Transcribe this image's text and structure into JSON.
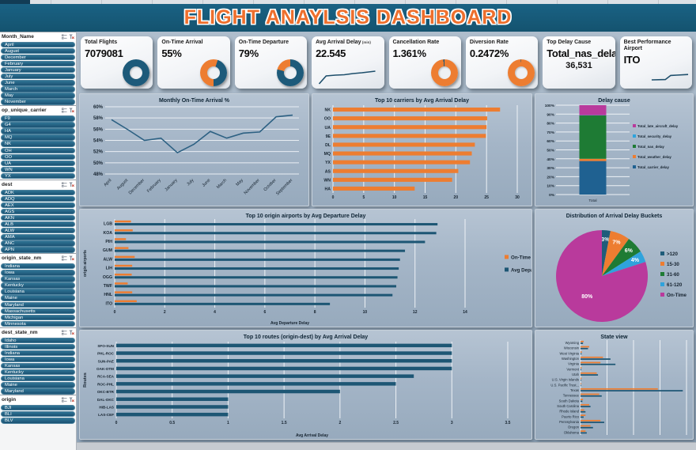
{
  "title": "FLIGHT ANAYLSIS DASHBOARD",
  "sidebar": {
    "slicers": [
      {
        "name": "Month_Name",
        "items": [
          "April",
          "August",
          "December",
          "February",
          "January",
          "July",
          "June",
          "March",
          "May",
          "November"
        ]
      },
      {
        "name": "op_unique_carrier",
        "items": [
          "F9",
          "G4",
          "HA",
          "MQ",
          "NK",
          "OH",
          "OO",
          "UA",
          "WN",
          "YX"
        ]
      },
      {
        "name": "dest",
        "items": [
          "ADK",
          "ADQ",
          "AEX",
          "AGS",
          "AKN",
          "ALB",
          "ALW",
          "AMA",
          "ANC",
          "APN"
        ]
      },
      {
        "name": "origin_state_nm",
        "items": [
          "Indiana",
          "Iowa",
          "Kansas",
          "Kentucky",
          "Louisiana",
          "Maine",
          "Maryland",
          "Massachusetts",
          "Michigan",
          "Minnesota"
        ]
      },
      {
        "name": "dest_state_nm",
        "items": [
          "Idaho",
          "Illinois",
          "Indiana",
          "Iowa",
          "Kansas",
          "Kentucky",
          "Louisiana",
          "Maine",
          "Maryland"
        ]
      },
      {
        "name": "origin",
        "items": [
          "BJI",
          "BLI",
          "BLV"
        ]
      }
    ]
  },
  "kpis": [
    {
      "label": "Total Flights",
      "value": "7079081",
      "viz": "donut",
      "donut": {
        "from": 0,
        "segments": [
          {
            "color": "#1D5A7A",
            "pct": 100
          }
        ]
      }
    },
    {
      "label": "On-Time Arrival",
      "value": "55%",
      "viz": "donut",
      "donut": {
        "from": 180,
        "segments": [
          {
            "color": "#ED7D31",
            "pct": 55
          },
          {
            "color": "#1D5A7A",
            "pct": 45
          }
        ]
      }
    },
    {
      "label": "On-Time Departure",
      "value": "79%",
      "viz": "donut",
      "donut": {
        "from": 0,
        "segments": [
          {
            "color": "#1D5A7A",
            "pct": 79
          },
          {
            "color": "#ED7D31",
            "pct": 21
          }
        ]
      }
    },
    {
      "label": "Avg Arrival Delay",
      "label_suffix": "(min)",
      "value": "22.545",
      "viz": "spark",
      "spark": [
        [
          2,
          18
        ],
        [
          14,
          8
        ],
        [
          30,
          7
        ],
        [
          45,
          6.5
        ],
        [
          60,
          5
        ],
        [
          75,
          4
        ],
        [
          98,
          2
        ]
      ]
    },
    {
      "label": "Cancellation Rate",
      "value": "1.361%",
      "viz": "donut",
      "donut": {
        "from": 0,
        "segments": [
          {
            "color": "#ED7D31",
            "pct": 98.6
          },
          {
            "color": "#1D5A7A",
            "pct": 1.4
          }
        ]
      }
    },
    {
      "label": "Diversion Rate",
      "value": "0.2472%",
      "viz": "donut",
      "donut": {
        "from": 0,
        "segments": [
          {
            "color": "#ED7D31",
            "pct": 99.7
          },
          {
            "color": "#1D5A7A",
            "pct": 0.3
          }
        ]
      }
    },
    {
      "label": "Top Delay Cause",
      "value": "Total_nas_delay",
      "sub": "36,531",
      "viz": "text"
    },
    {
      "label": "Best Performance Airport",
      "value": "ITO",
      "viz": "spark",
      "spark_right": true,
      "spark": [
        [
          2,
          15
        ],
        [
          38,
          14.5
        ],
        [
          52,
          8
        ],
        [
          68,
          7.5
        ],
        [
          98,
          6.5
        ]
      ]
    }
  ],
  "chart_data": [
    {
      "id": "monthly_on_time",
      "type": "line",
      "title": "Monthly On-Time Arrival %",
      "categories": [
        "April",
        "August",
        "December",
        "February",
        "January",
        "July",
        "June",
        "March",
        "May",
        "November",
        "October",
        "September"
      ],
      "values": [
        57.7,
        55.9,
        54.0,
        54.4,
        51.8,
        53.3,
        55.6,
        54.4,
        55.3,
        55.5,
        58.2,
        58.5
      ],
      "ylim": [
        48,
        60
      ],
      "ytick_step": 2,
      "line_color": "#2d6183",
      "grid": true
    },
    {
      "id": "carriers",
      "type": "bar",
      "title": "Top 10 carriers by Avg Arrival Delay",
      "categories": [
        "NK",
        "OO",
        "UA",
        "9E",
        "DL",
        "MQ",
        "YX",
        "AS",
        "WN",
        "HA"
      ],
      "values": [
        27.2,
        25.1,
        25.0,
        24.9,
        23.1,
        22.6,
        22.3,
        20.4,
        19.4,
        13.3
      ],
      "xlim": [
        0,
        30
      ],
      "xtick_step": 5,
      "color": "#ED7D31",
      "grid": true
    },
    {
      "id": "delay_cause",
      "type": "stacked_bar",
      "title": "Delay cause",
      "x_label": "Total",
      "ylim": [
        0,
        100
      ],
      "ytick_step": 10,
      "segments": [
        {
          "name": "Total_carrier_delay",
          "value": 37.5,
          "color": "#1F6191"
        },
        {
          "name": "Total_weather_delay",
          "value": 2.5,
          "color": "#ED7D31"
        },
        {
          "name": "Total_nas_delay",
          "value": 48.5,
          "color": "#1E7B34"
        },
        {
          "name": "Total_security_delay",
          "value": 0.3,
          "color": "#2FA3DC"
        },
        {
          "name": "Total_late_aircraft_delay",
          "value": 11.2,
          "color": "#B93A9C"
        }
      ],
      "legend_position": "right"
    },
    {
      "id": "origin_airports",
      "type": "clustered_bar",
      "title": "Top 10 origin airports by Avg Departure Delay",
      "categories": [
        "LGB",
        "KOA",
        "PIH",
        "GUM",
        "ALW",
        "LIH",
        "OGG",
        "TWF",
        "HNL",
        "ITO"
      ],
      "series": [
        {
          "name": "On-Time Arrival %",
          "color": "#ED7D31",
          "values": [
            0.65,
            0.72,
            0.45,
            0.55,
            0.8,
            0.7,
            0.68,
            0.52,
            0.7,
            0.88
          ]
        },
        {
          "name": "Avg Departure Delay",
          "color": "#1D5674",
          "values": [
            12.9,
            12.85,
            12.4,
            11.6,
            11.4,
            11.35,
            11.3,
            11.25,
            11.1,
            8.6
          ]
        }
      ],
      "xlim": [
        0,
        14
      ],
      "xtick_step": 2,
      "xlabel": "Avg Departure Delay",
      "ylabel": "origin airports",
      "legend_position": "right",
      "grid": true
    },
    {
      "id": "delay_buckets",
      "type": "pie",
      "title": "Distribution of Arrival Delay Buckets",
      "slices": [
        {
          "label": ">120",
          "value": 3,
          "color": "#1F5C7A"
        },
        {
          "label": "15-30",
          "value": 7,
          "color": "#ED7D31"
        },
        {
          "label": "31-60",
          "value": 6,
          "color": "#1E7B34"
        },
        {
          "label": "61-120",
          "value": 4,
          "color": "#2FA3DC"
        },
        {
          "label": "On-Time",
          "value": 80,
          "color": "#B93A9C"
        }
      ],
      "legend_position": "right"
    },
    {
      "id": "routes",
      "type": "bar",
      "title": "Top 10 routes (origin-dest) by Avg Arrival Delay",
      "categories": [
        "SFO-SUN",
        "PHL-ROC",
        "SUN-PAE",
        "OAK-OTM",
        "RCA-SEA",
        "ROC-PHL",
        "OKC-BTR",
        "DAL-OKC",
        "HIB-LAS",
        "LAS-CEF"
      ],
      "values": [
        3.0,
        3.0,
        3.0,
        3.0,
        2.66,
        2.5,
        2.0,
        1.0,
        1.0,
        1.0
      ],
      "xlim": [
        0,
        3.5
      ],
      "xtick_step": 0.5,
      "xlabel": "Avg Arrival Delay",
      "ylabel": "Routes",
      "color": "#1D5674",
      "grid": true
    },
    {
      "id": "state_view",
      "type": "state_clustered",
      "title": "State view",
      "categories": [
        "Wyoming",
        "Wisconsin",
        "West Virginia",
        "Washington",
        "Virginia",
        "Vermont",
        "Utah",
        "U.S. Virgin Islands",
        "U.S. Pacific Trust...",
        "Texas",
        "Tennessee",
        "South Dakota",
        "South Carolina",
        "Rhode Island",
        "Puerto Rico",
        "Pennsylvania",
        "Oregon",
        "Oklahoma"
      ],
      "series": [
        {
          "name": "orange",
          "color": "#ED7D31",
          "values": [
            2.5,
            7,
            1,
            18,
            16,
            0.8,
            13,
            0.8,
            0.5,
            62,
            15,
            2,
            7,
            3,
            4,
            16,
            8,
            4
          ]
        },
        {
          "name": "blue",
          "color": "#1D5674",
          "values": [
            2,
            6,
            0.8,
            24,
            28,
            0.6,
            14,
            0.5,
            0.4,
            82,
            17,
            1.5,
            8,
            4,
            2.5,
            19,
            10,
            5
          ]
        }
      ],
      "xlim": [
        0,
        85
      ],
      "grid": true
    }
  ]
}
